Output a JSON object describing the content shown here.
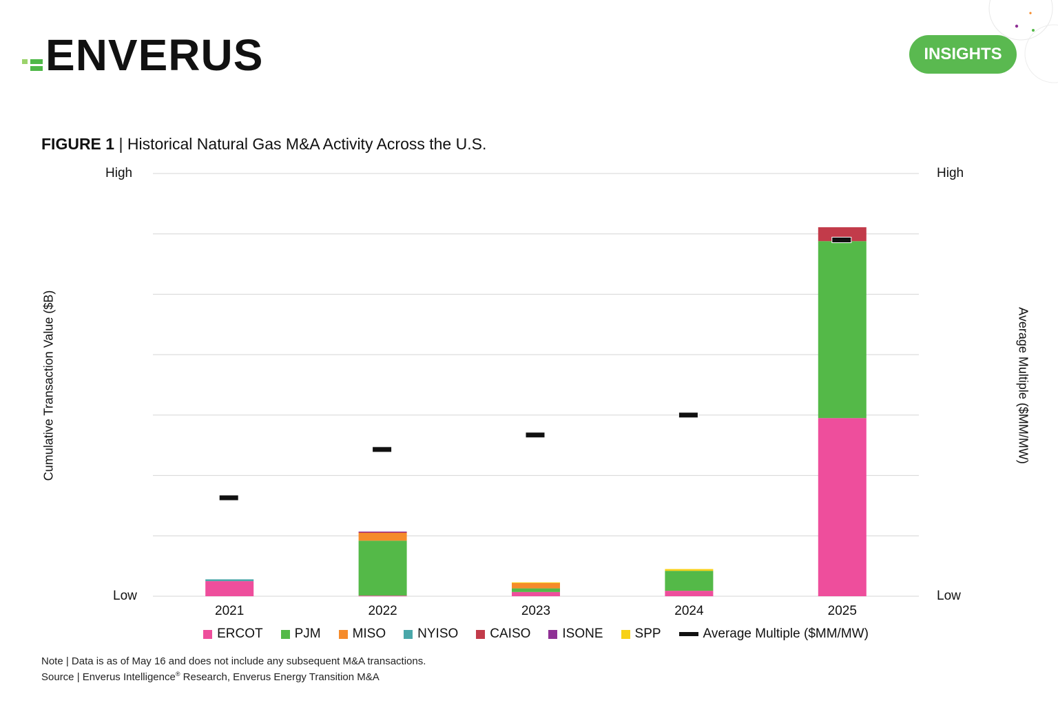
{
  "header": {
    "logo_text": "ENVERUS",
    "badge_label": "INSIGHTS",
    "colors": {
      "brand_green": "#5ab950",
      "logo_green_light": "#9bd36b",
      "logo_green_mid": "#4fb848"
    }
  },
  "figure": {
    "label": "FIGURE 1",
    "separator": " | ",
    "title": "Historical Natural Gas M&A Activity Across the U.S."
  },
  "chart_data": {
    "type": "bar",
    "stacked": true,
    "categories": [
      "2021",
      "2022",
      "2023",
      "2024",
      "2025"
    ],
    "ylabel": "Cumulative Transaction Value ($B)",
    "y2label": "Average Multiple ($MM/MW)",
    "y_low_label": "Low",
    "y_high_label": "High",
    "y2_low_label": "Low",
    "y2_high_label": "High",
    "ylim": [
      0,
      7
    ],
    "y2lim": [
      0,
      7
    ],
    "grid": true,
    "legend_position": "bottom",
    "series": [
      {
        "name": "ERCOT",
        "color": "#ee4e9c",
        "values": [
          0.25,
          0.01,
          0.07,
          0.09,
          2.95
        ]
      },
      {
        "name": "PJM",
        "color": "#54b948",
        "values": [
          0.0,
          0.91,
          0.06,
          0.33,
          2.93
        ]
      },
      {
        "name": "MISO",
        "color": "#f58b2b",
        "values": [
          0.0,
          0.13,
          0.09,
          0.0,
          0.0
        ]
      },
      {
        "name": "NYISO",
        "color": "#4aa7a9",
        "values": [
          0.03,
          0.0,
          0.0,
          0.0,
          0.0
        ]
      },
      {
        "name": "CAISO",
        "color": "#c23b4a",
        "values": [
          0.0,
          0.01,
          0.0,
          0.0,
          0.23
        ]
      },
      {
        "name": "ISONE",
        "color": "#8f3195",
        "values": [
          0.0,
          0.01,
          0.0,
          0.0,
          0.0
        ]
      },
      {
        "name": "SPP",
        "color": "#f7d117",
        "values": [
          0.0,
          0.0,
          0.01,
          0.03,
          0.0
        ]
      }
    ],
    "line_series": {
      "name": "Average Multiple ($MM/MW)",
      "color": "#111111",
      "axis": "right",
      "values": [
        1.63,
        2.43,
        2.67,
        3.0,
        5.9
      ]
    }
  },
  "footer": {
    "note": "Note | Data is as of May 16 and does not include any subsequent M&A transactions.",
    "source_prefix": "Source | Enverus Intelligence",
    "source_reg": "®",
    "source_suffix": " Research, Enverus Energy Transition M&A"
  }
}
